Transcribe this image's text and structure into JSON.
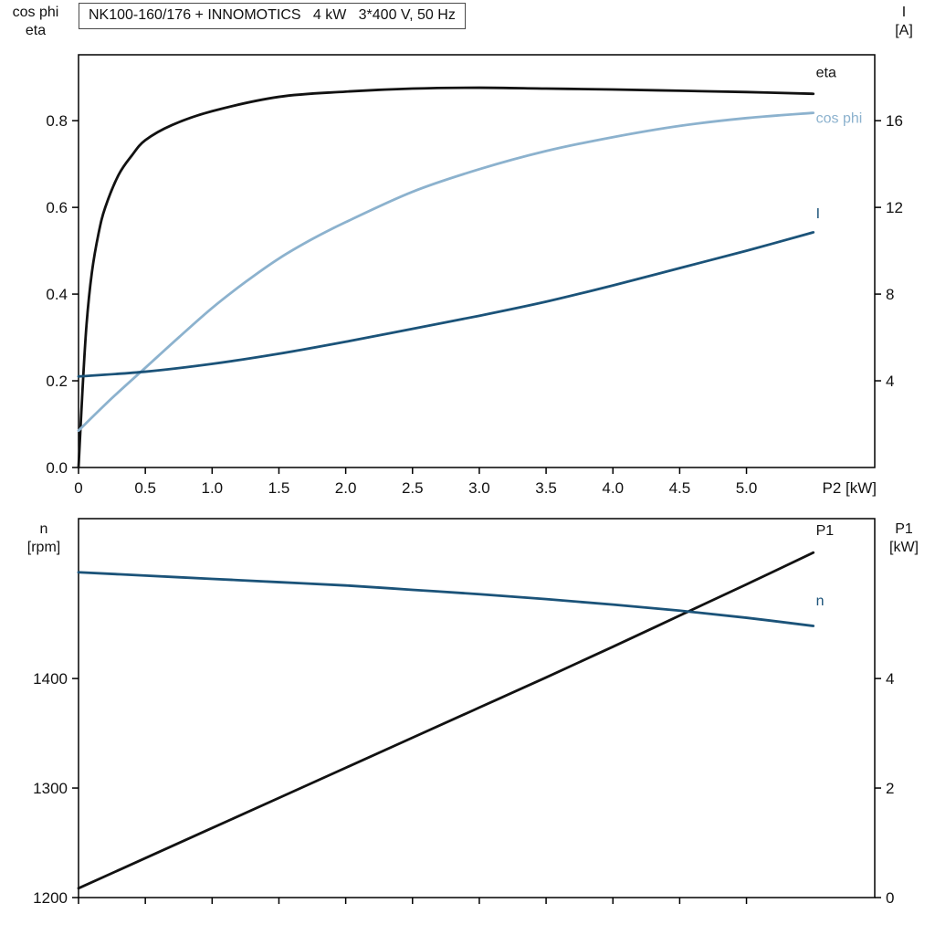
{
  "title": "NK100-160/176 + INNOMOTICS   4 kW   3*400 V, 50 Hz",
  "colors": {
    "black": "#121212",
    "light_blue": "#8cb2ce",
    "dark_blue": "#1b5379"
  },
  "chart_data": [
    {
      "name": "motor-performance-chart",
      "type": "line",
      "grid": false,
      "x_axis": {
        "label": "P2 [kW]",
        "range": [
          0,
          5.96
        ],
        "ticks": [
          [
            0,
            "0"
          ],
          [
            0.5,
            "0.5"
          ],
          [
            1,
            "1.0"
          ],
          [
            1.5,
            "1.5"
          ],
          [
            2,
            "2.0"
          ],
          [
            2.5,
            "2.5"
          ],
          [
            3,
            "3.0"
          ],
          [
            3.5,
            "3.5"
          ],
          [
            4,
            "4.0"
          ],
          [
            4.5,
            "4.5"
          ],
          [
            5,
            "5.0"
          ]
        ]
      },
      "left_axis": {
        "label_lines": [
          "cos phi",
          "eta"
        ],
        "range": [
          0,
          0.952
        ],
        "ticks": [
          [
            0,
            "0.0"
          ],
          [
            0.2,
            "0.2"
          ],
          [
            0.4,
            "0.4"
          ],
          [
            0.6,
            "0.6"
          ],
          [
            0.8,
            "0.8"
          ]
        ]
      },
      "right_axis": {
        "label_lines": [
          "I",
          "[A]"
        ],
        "range": [
          0,
          19.04
        ],
        "ticks": [
          [
            4,
            "4"
          ],
          [
            8,
            "8"
          ],
          [
            12,
            "12"
          ],
          [
            16,
            "16"
          ]
        ]
      },
      "series": [
        {
          "name": "eta",
          "label": "eta",
          "color": "black",
          "axis": "left",
          "label_pos": {
            "x": 5.52,
            "y": 0.9
          },
          "x": [
            0,
            0.03,
            0.06,
            0.1,
            0.15,
            0.2,
            0.3,
            0.4,
            0.5,
            0.7,
            1.0,
            1.5,
            2.0,
            2.5,
            3.0,
            3.5,
            4.0,
            4.5,
            5.0,
            5.5
          ],
          "y": [
            0,
            0.18,
            0.33,
            0.45,
            0.54,
            0.6,
            0.675,
            0.72,
            0.755,
            0.79,
            0.822,
            0.855,
            0.867,
            0.874,
            0.876,
            0.874,
            0.872,
            0.869,
            0.866,
            0.862
          ]
        },
        {
          "name": "cos-phi",
          "label": "cos phi",
          "color": "light_blue",
          "axis": "left",
          "label_pos": {
            "x": 5.52,
            "y": 0.795
          },
          "x": [
            0,
            0.25,
            0.5,
            0.75,
            1.0,
            1.25,
            1.5,
            1.75,
            2.0,
            2.5,
            3.0,
            3.5,
            4.0,
            4.5,
            5.0,
            5.5
          ],
          "y": [
            0.085,
            0.16,
            0.23,
            0.3,
            0.368,
            0.428,
            0.482,
            0.527,
            0.566,
            0.636,
            0.688,
            0.73,
            0.762,
            0.788,
            0.806,
            0.818
          ]
        },
        {
          "name": "current",
          "label": "I",
          "color": "dark_blue",
          "axis": "right",
          "label_pos": {
            "x": 5.52,
            "y": 11.5
          },
          "x": [
            0,
            0.5,
            1.0,
            1.5,
            2.0,
            2.5,
            3.0,
            3.5,
            4.0,
            4.5,
            5.0,
            5.5
          ],
          "y": [
            4.2,
            4.42,
            4.78,
            5.25,
            5.8,
            6.4,
            7.0,
            7.65,
            8.4,
            9.2,
            10.0,
            10.85
          ]
        }
      ]
    },
    {
      "name": "speed-power-chart",
      "type": "line",
      "grid": false,
      "x_axis": {
        "label": null,
        "range": [
          0,
          5.96
        ],
        "ticks": [
          [
            0,
            null
          ],
          [
            0.5,
            null
          ],
          [
            1,
            null
          ],
          [
            1.5,
            null
          ],
          [
            2,
            null
          ],
          [
            2.5,
            null
          ],
          [
            3,
            null
          ],
          [
            3.5,
            null
          ],
          [
            4,
            null
          ],
          [
            4.5,
            null
          ],
          [
            5,
            null
          ]
        ]
      },
      "left_axis": {
        "label_lines": [
          "n",
          "[rpm]"
        ],
        "range": [
          1200,
          1546
        ],
        "ticks": [
          [
            1200,
            "1200"
          ],
          [
            1300,
            "1300"
          ],
          [
            1400,
            "1400"
          ]
        ]
      },
      "right_axis": {
        "label_lines": [
          "P1",
          "[kW]"
        ],
        "range": [
          0,
          6.92
        ],
        "ticks": [
          [
            0,
            "0"
          ],
          [
            2,
            "2"
          ],
          [
            4,
            "4"
          ]
        ]
      },
      "series": [
        {
          "name": "p1",
          "label": "P1",
          "color": "black",
          "axis": "right",
          "label_pos": {
            "x": 5.52,
            "y": 6.62
          },
          "x": [
            0,
            0.5,
            1.0,
            1.5,
            2.0,
            2.5,
            3.0,
            3.5,
            4.0,
            4.5,
            5.0,
            5.5
          ],
          "y": [
            0.17,
            0.72,
            1.27,
            1.82,
            2.37,
            2.92,
            3.47,
            4.02,
            4.58,
            5.15,
            5.72,
            6.3
          ]
        },
        {
          "name": "speed",
          "label": "n",
          "color": "dark_blue",
          "axis": "left",
          "label_pos": {
            "x": 5.52,
            "y": 1467
          },
          "x": [
            0,
            0.5,
            1.0,
            1.5,
            2.0,
            2.5,
            3.0,
            3.5,
            4.0,
            4.5,
            5.0,
            5.5
          ],
          "y": [
            1497,
            1494,
            1491,
            1488,
            1485,
            1481,
            1477,
            1472.5,
            1467.5,
            1462,
            1455.5,
            1448
          ]
        }
      ]
    }
  ]
}
